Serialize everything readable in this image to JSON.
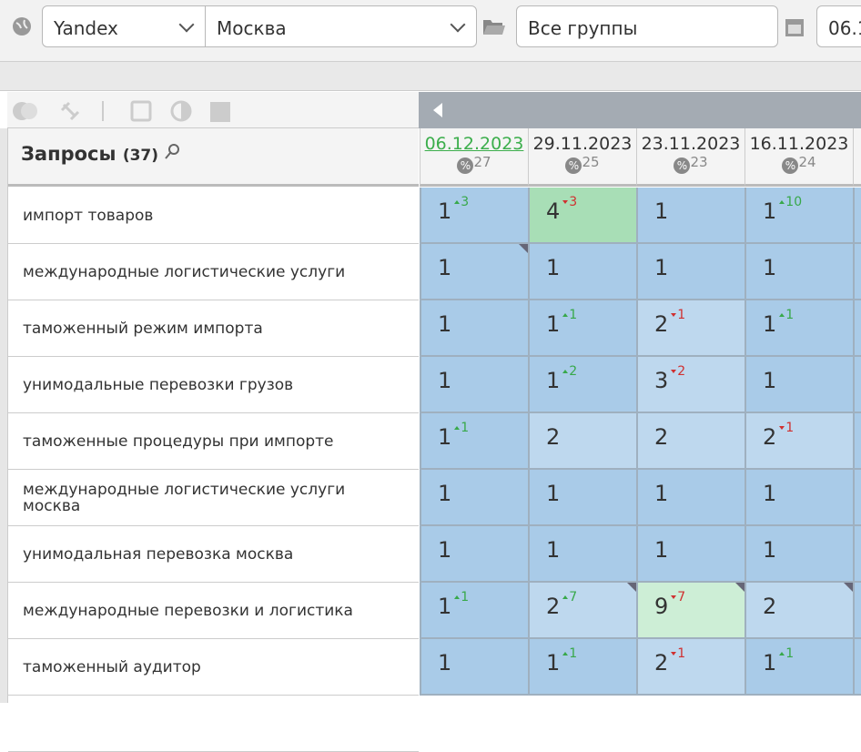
{
  "toolbar": {
    "engine": "Yandex",
    "region": "Москва",
    "group": "Все группы",
    "date": "06.1"
  },
  "header": {
    "title": "Запросы",
    "count": "(37)"
  },
  "dates": [
    {
      "date": "06.12.2023",
      "count": 27
    },
    {
      "date": "29.11.2023",
      "count": 25
    },
    {
      "date": "23.11.2023",
      "count": 23
    },
    {
      "date": "16.11.2023",
      "count": 24
    }
  ],
  "rows": [
    {
      "query": "импорт товаров",
      "cells": [
        {
          "pos": 1,
          "change": 3,
          "dir": "up"
        },
        {
          "pos": 4,
          "change": 3,
          "dir": "down",
          "highlight": "green"
        },
        {
          "pos": 1
        },
        {
          "pos": 1,
          "change": 10,
          "dir": "up"
        }
      ]
    },
    {
      "query": "международные логистические услуги",
      "cells": [
        {
          "pos": 1,
          "corner": true
        },
        {
          "pos": 1
        },
        {
          "pos": 1
        },
        {
          "pos": 1
        }
      ]
    },
    {
      "query": "таможенный режим импорта",
      "cells": [
        {
          "pos": 1
        },
        {
          "pos": 1,
          "change": 1,
          "dir": "up"
        },
        {
          "pos": 2,
          "change": 1,
          "dir": "down"
        },
        {
          "pos": 1,
          "change": 1,
          "dir": "up"
        }
      ]
    },
    {
      "query": "унимодальные перевозки грузов",
      "cells": [
        {
          "pos": 1
        },
        {
          "pos": 1,
          "change": 2,
          "dir": "up"
        },
        {
          "pos": 3,
          "change": 2,
          "dir": "down"
        },
        {
          "pos": 1
        }
      ]
    },
    {
      "query": "таможенные процедуры при импорте",
      "cells": [
        {
          "pos": 1,
          "change": 1,
          "dir": "up"
        },
        {
          "pos": 2
        },
        {
          "pos": 2
        },
        {
          "pos": 2,
          "change": 1,
          "dir": "down"
        }
      ]
    },
    {
      "query": "международные логистические услуги москва",
      "cells": [
        {
          "pos": 1
        },
        {
          "pos": 1
        },
        {
          "pos": 1
        },
        {
          "pos": 1
        }
      ]
    },
    {
      "query": "унимодальная перевозка москва",
      "cells": [
        {
          "pos": 1
        },
        {
          "pos": 1
        },
        {
          "pos": 1
        },
        {
          "pos": 1
        }
      ]
    },
    {
      "query": "международные перевозки и логистика",
      "cells": [
        {
          "pos": 1,
          "change": 1,
          "dir": "up"
        },
        {
          "pos": 2,
          "change": 7,
          "dir": "up",
          "corner": true
        },
        {
          "pos": 9,
          "change": 7,
          "dir": "down",
          "highlight": "pale-green",
          "corner": true
        },
        {
          "pos": 2,
          "corner": true
        }
      ]
    },
    {
      "query": "таможенный аудитор",
      "cells": [
        {
          "pos": 1
        },
        {
          "pos": 1,
          "change": 1,
          "dir": "up"
        },
        {
          "pos": 2,
          "change": 1,
          "dir": "down"
        },
        {
          "pos": 1,
          "change": 1,
          "dir": "up"
        }
      ]
    }
  ]
}
